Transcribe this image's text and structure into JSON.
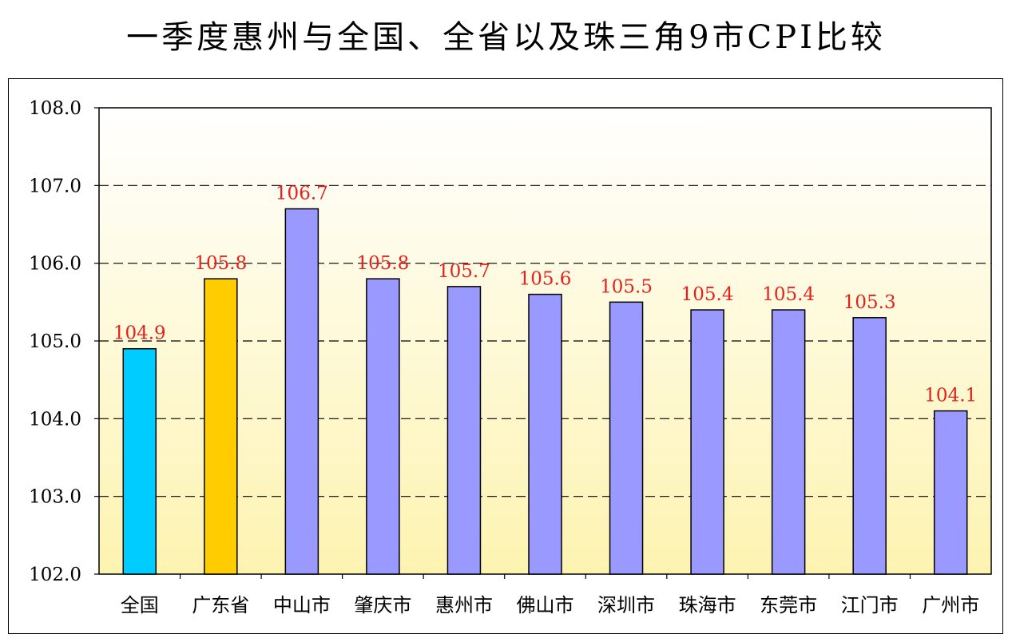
{
  "chart_data": {
    "type": "bar",
    "title": "一季度惠州与全国、全省以及珠三角9市CPI比较",
    "categories": [
      "全国",
      "广东省",
      "中山市",
      "肇庆市",
      "惠州市",
      "佛山市",
      "深圳市",
      "珠海市",
      "东莞市",
      "江门市",
      "广州市"
    ],
    "values": [
      104.9,
      105.8,
      106.7,
      105.8,
      105.7,
      105.6,
      105.5,
      105.4,
      105.4,
      105.3,
      104.1
    ],
    "value_labels": [
      "104.9",
      "105.8",
      "106.7",
      "105.8",
      "105.7",
      "105.6",
      "105.5",
      "105.4",
      "105.4",
      "105.3",
      "104.1"
    ],
    "bar_colors": [
      "#00ccff",
      "#ffcc00",
      "#9999ff",
      "#9999ff",
      "#9999ff",
      "#9999ff",
      "#9999ff",
      "#9999ff",
      "#9999ff",
      "#9999ff",
      "#9999ff"
    ],
    "ylim": [
      102.0,
      108.0
    ],
    "yticks": [
      "102.0",
      "103.0",
      "104.0",
      "105.0",
      "106.0",
      "107.0",
      "108.0"
    ],
    "grid": "dashed horizontal",
    "legend": "none",
    "xlabel": "",
    "ylabel": "",
    "label_color": "#e8201c",
    "plot_background": [
      "#ffffff",
      "#fdf3b0"
    ]
  }
}
